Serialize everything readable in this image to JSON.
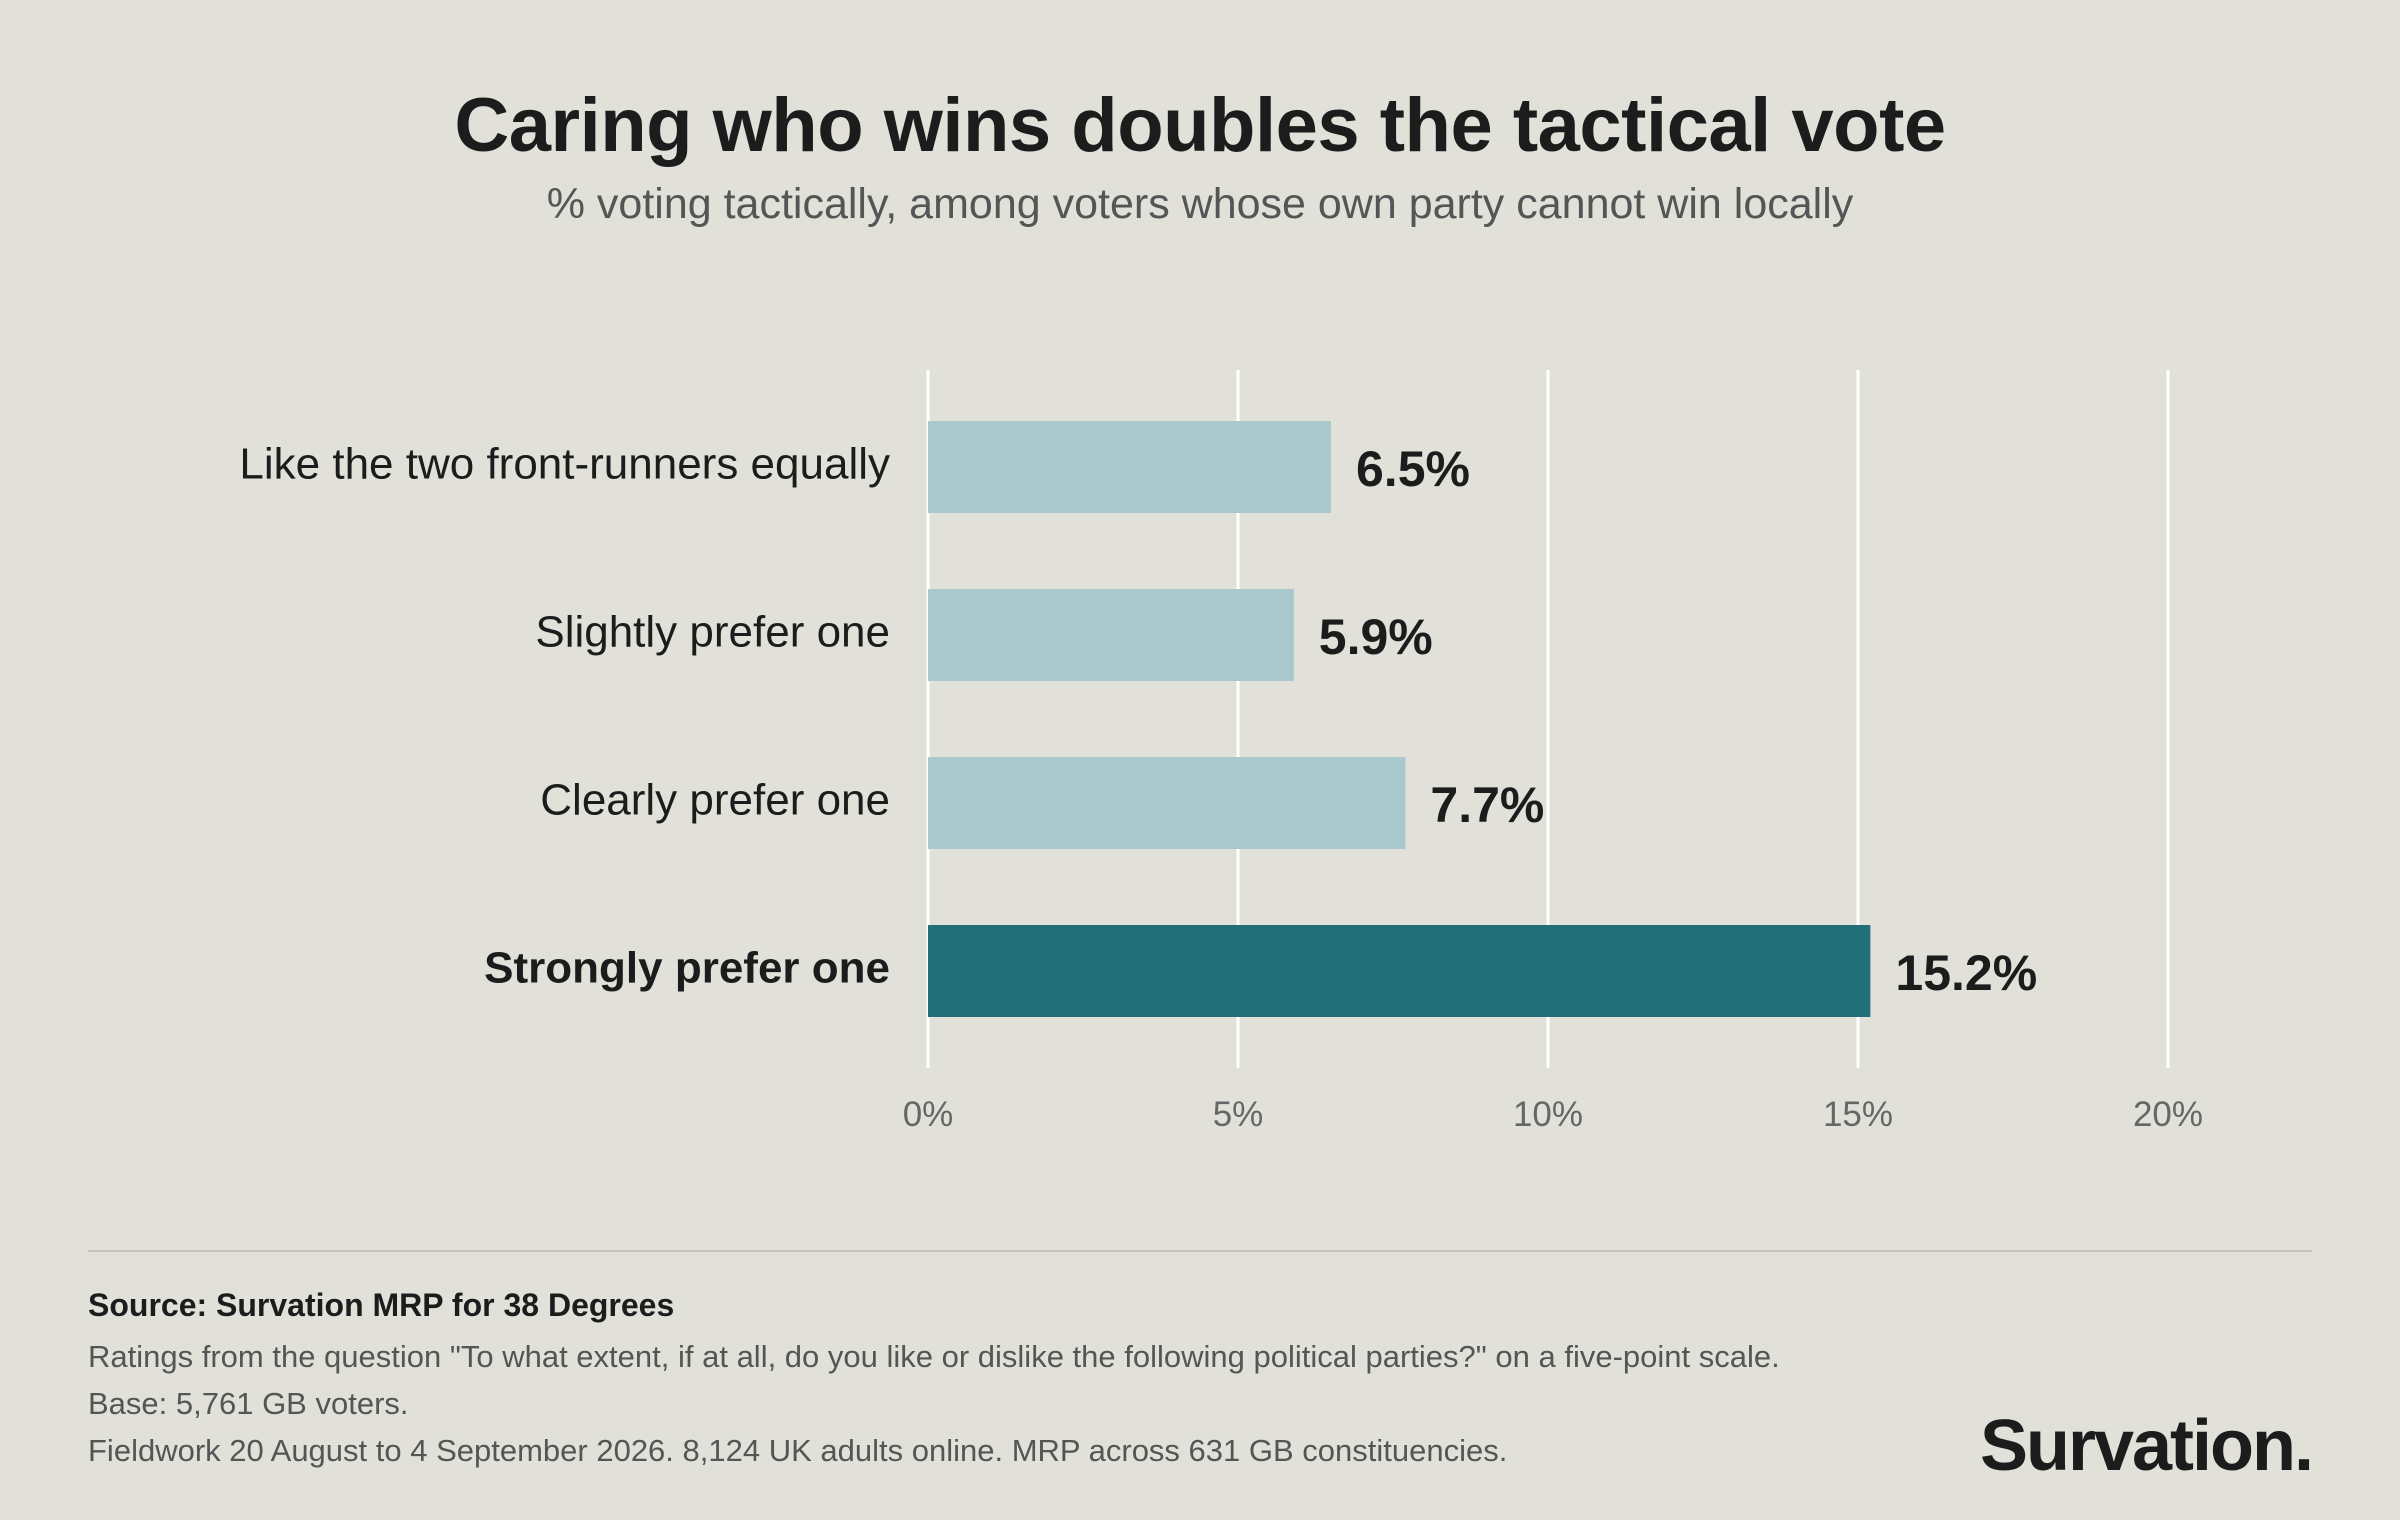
{
  "title": "Caring who wins doubles the tactical vote",
  "subtitle": "% voting tactically, among voters whose own party cannot win locally",
  "chart_data": {
    "type": "bar",
    "orientation": "horizontal",
    "categories": [
      "Like the two front-runners equally",
      "Slightly prefer one",
      "Clearly prefer one",
      "Strongly prefer one"
    ],
    "values": [
      6.5,
      5.9,
      7.7,
      15.2
    ],
    "value_labels": [
      "6.5%",
      "5.9%",
      "7.7%",
      "15.2%"
    ],
    "highlight_index": 3,
    "xlim": [
      0,
      20
    ],
    "x_ticks": [
      0,
      5,
      10,
      15,
      20
    ],
    "x_tick_labels": [
      "0%",
      "5%",
      "10%",
      "15%",
      "20%"
    ],
    "grid": true,
    "colors": {
      "bar": "#a9c8cc",
      "highlight": "#216f78",
      "grid": "#ffffff"
    }
  },
  "footer": {
    "source": "Source: Survation MRP for 38 Degrees",
    "note": "Ratings from the question \"To what extent, if at all, do you like or dislike the following political parties?\" on a five-point scale.",
    "base": "Base: 5,761 GB voters.",
    "fieldwork": "Fieldwork 20 August to 4 September 2026. 8,124 UK adults online. MRP across 631 GB constituencies."
  },
  "logo": "Survation."
}
